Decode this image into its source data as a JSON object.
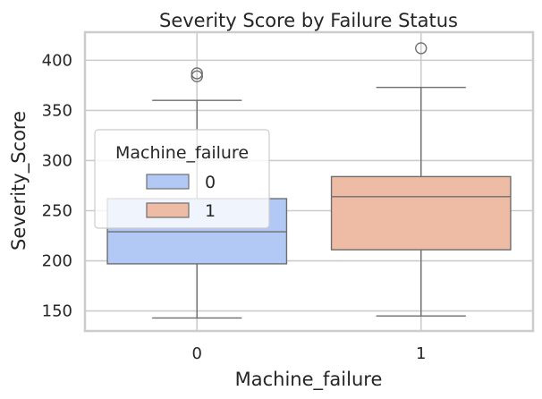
{
  "chart_data": {
    "type": "box",
    "title": "Severity Score by Failure Status",
    "xlabel": "Machine_failure",
    "ylabel": "Severity_Score",
    "categories": [
      "0",
      "1"
    ],
    "ylim": [
      130,
      428
    ],
    "yticks": [
      150,
      200,
      250,
      300,
      350,
      400
    ],
    "grid": true,
    "legend": {
      "title": "Machine_failure",
      "placement": "center-left",
      "entries": [
        {
          "label": "0",
          "color": "#b2c8f5"
        },
        {
          "label": "1",
          "color": "#eebba4"
        }
      ]
    },
    "boxes": [
      {
        "category": "0",
        "min": 143,
        "q1": 197,
        "median": 229,
        "q3": 262,
        "max": 360,
        "outliers": [
          384,
          387
        ],
        "color": "#b2c8f5"
      },
      {
        "category": "1",
        "min": 145,
        "q1": 211,
        "median": 264,
        "q3": 284,
        "max": 373,
        "outliers": [
          412
        ],
        "color": "#eebba4"
      }
    ]
  }
}
